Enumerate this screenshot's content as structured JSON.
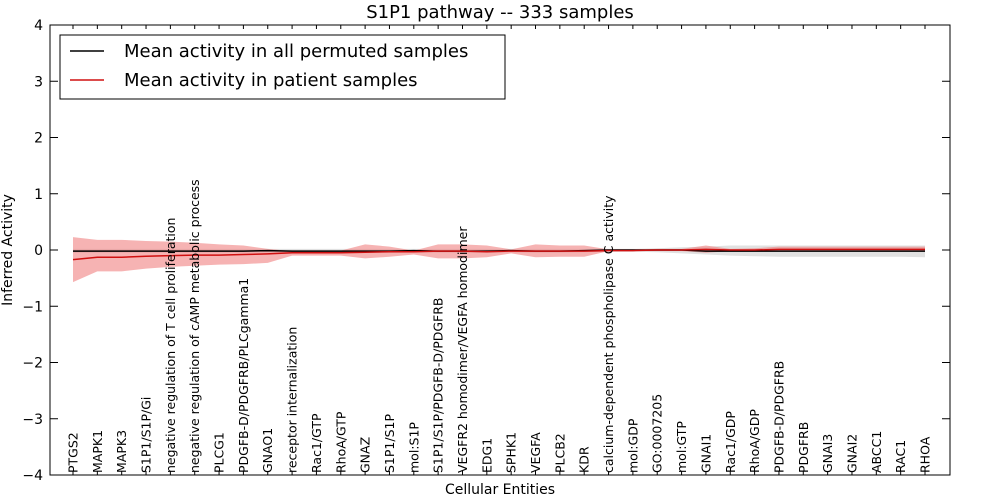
{
  "chart_data": {
    "type": "line",
    "title": "S1P1 pathway -- 333 samples",
    "xlabel": "Cellular Entities",
    "ylabel": "Inferred Activity",
    "ylim": [
      -4,
      4
    ],
    "yticks": [
      4,
      3,
      2,
      1,
      0,
      -1,
      -2,
      -3,
      -4
    ],
    "ytick_labels": [
      "4",
      "3",
      "2",
      "1",
      "0",
      "−1",
      "−2",
      "−3",
      "−4"
    ],
    "legend_position": "top-left",
    "categories": [
      "PTGS2",
      "MAPK1",
      "MAPK3",
      "S1P1/S1P/Gi",
      "negative regulation of T cell proliferation",
      "negative regulation of cAMP metabolic process",
      "PLCG1",
      "PDGFB-D/PDGFRB/PLCgamma1",
      "GNAO1",
      "receptor internalization",
      "Rac1/GTP",
      "RhoA/GTP",
      "GNAZ",
      "S1P1/S1P",
      "mol:S1P",
      "S1P1/S1P/PDGFB-D/PDGFRB",
      "VEGFR2 homodimer/VEGFA homodimer",
      "EDG1",
      "SPHK1",
      "VEGFA",
      "PLCB2",
      "KDR",
      "calcium-dependent phospholipase C activity",
      "mol:GDP",
      "GO:0007205",
      "mol:GTP",
      "GNAI1",
      "Rac1/GDP",
      "RhoA/GDP",
      "PDGFB-D/PDGFRB",
      "PDGFRB",
      "GNAI3",
      "GNAI2",
      "ABCC1",
      "RAC1",
      "RHOA"
    ],
    "series": [
      {
        "name": "Mean activity in all permuted samples",
        "color": "#000000",
        "band_color": "#c8c8c8",
        "values": [
          -0.02,
          -0.02,
          -0.02,
          -0.02,
          -0.02,
          -0.02,
          -0.02,
          -0.02,
          -0.01,
          -0.02,
          -0.02,
          -0.02,
          -0.02,
          -0.02,
          -0.01,
          -0.02,
          -0.02,
          -0.02,
          -0.01,
          -0.02,
          -0.02,
          -0.01,
          0.0,
          0.0,
          0.0,
          0.0,
          -0.02,
          -0.02,
          -0.02,
          -0.02,
          -0.02,
          -0.02,
          -0.02,
          -0.02,
          -0.02,
          -0.02
        ],
        "upper": [
          0.02,
          0.02,
          0.02,
          0.02,
          0.02,
          0.02,
          0.02,
          0.02,
          0.02,
          0.02,
          0.02,
          0.02,
          0.02,
          0.02,
          0.02,
          0.02,
          0.02,
          0.02,
          0.02,
          0.02,
          0.02,
          0.02,
          0.02,
          0.02,
          0.03,
          0.05,
          0.06,
          0.08,
          0.08,
          0.08,
          0.08,
          0.08,
          0.08,
          0.08,
          0.08,
          0.08
        ],
        "lower": [
          -0.05,
          -0.05,
          -0.05,
          -0.05,
          -0.05,
          -0.05,
          -0.05,
          -0.05,
          -0.04,
          -0.05,
          -0.05,
          -0.05,
          -0.05,
          -0.05,
          -0.04,
          -0.05,
          -0.05,
          -0.05,
          -0.04,
          -0.05,
          -0.05,
          -0.04,
          -0.03,
          -0.03,
          -0.04,
          -0.06,
          -0.08,
          -0.1,
          -0.11,
          -0.12,
          -0.12,
          -0.12,
          -0.12,
          -0.12,
          -0.12,
          -0.13
        ]
      },
      {
        "name": "Mean activity in patient samples",
        "color": "#d01010",
        "band_color": "#f08080",
        "values": [
          -0.17,
          -0.13,
          -0.13,
          -0.11,
          -0.1,
          -0.09,
          -0.09,
          -0.08,
          -0.07,
          -0.05,
          -0.05,
          -0.05,
          -0.04,
          -0.03,
          -0.03,
          -0.02,
          -0.02,
          -0.03,
          -0.02,
          -0.02,
          -0.02,
          -0.02,
          -0.01,
          -0.01,
          0.0,
          0.0,
          0.01,
          0.0,
          0.0,
          0.01,
          0.01,
          0.01,
          0.01,
          0.01,
          0.01,
          0.01
        ],
        "upper": [
          0.23,
          0.18,
          0.18,
          0.16,
          0.15,
          0.13,
          0.1,
          0.08,
          0.02,
          -0.02,
          -0.02,
          -0.01,
          0.1,
          0.06,
          -0.01,
          0.1,
          0.1,
          0.08,
          0.01,
          0.1,
          0.08,
          0.08,
          0.01,
          0.01,
          0.02,
          0.02,
          0.08,
          0.02,
          0.03,
          0.06,
          0.06,
          0.06,
          0.06,
          0.06,
          0.06,
          0.06
        ],
        "lower": [
          -0.57,
          -0.38,
          -0.38,
          -0.33,
          -0.3,
          -0.28,
          -0.26,
          -0.25,
          -0.23,
          -0.1,
          -0.1,
          -0.1,
          -0.15,
          -0.12,
          -0.08,
          -0.15,
          -0.15,
          -0.13,
          -0.06,
          -0.13,
          -0.12,
          -0.12,
          -0.02,
          -0.02,
          -0.02,
          -0.02,
          -0.05,
          -0.02,
          -0.02,
          -0.02,
          -0.02,
          -0.02,
          -0.02,
          -0.02,
          -0.02,
          -0.02
        ]
      }
    ]
  }
}
